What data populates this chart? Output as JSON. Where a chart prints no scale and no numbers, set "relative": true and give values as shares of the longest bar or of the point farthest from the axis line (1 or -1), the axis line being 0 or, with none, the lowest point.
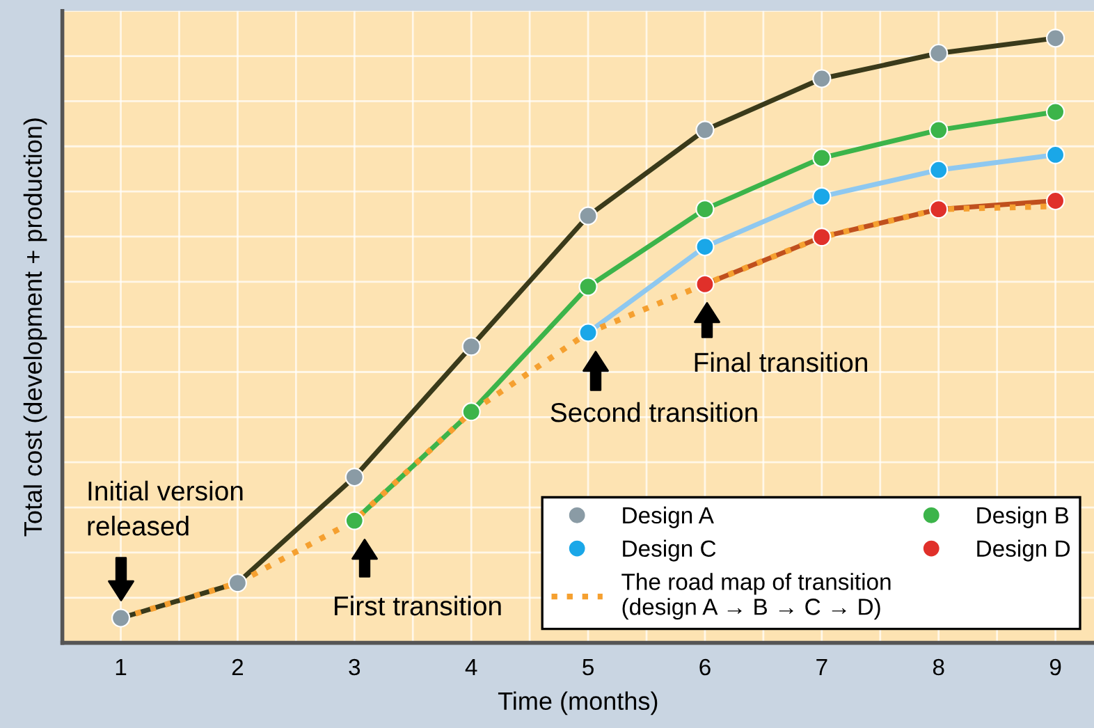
{
  "chart_data": {
    "type": "line",
    "relative": true,
    "xlabel": "Time (months)",
    "ylabel": "Total cost (development + production)",
    "xlim": [
      0.5,
      9.33
    ],
    "xticks": [
      1,
      2,
      3,
      4,
      5,
      6,
      7,
      8,
      9
    ],
    "tick_labels": "x",
    "grid": true,
    "legend": "bottom right",
    "marker": "circle",
    "series": [
      {
        "name": "Design A",
        "color": "#3a3a1a",
        "colors": [
          "#8a9ba5",
          "#8a9ba5",
          "#8a9ba5",
          "#8a9ba5",
          "#8a9ba5",
          "#8a9ba5",
          "#8a9ba5",
          "#8a9ba5",
          "#8a9ba5"
        ],
        "x": [
          1,
          2,
          3,
          4,
          5,
          6,
          7,
          8,
          9
        ],
        "values": [
          0.041,
          0.099,
          0.274,
          0.49,
          0.706,
          0.848,
          0.933,
          0.975,
          1
        ]
      },
      {
        "name": "Design B",
        "color": "#3cb44a",
        "colors": [
          "#3cb44a",
          "#3cb44a",
          "#3cb44a",
          "#3cb44a",
          "#3cb44a",
          "#3cb44a",
          "#3cb44a"
        ],
        "x": [
          3,
          4,
          5,
          6,
          7,
          8,
          9
        ],
        "values": [
          0.202,
          0.382,
          0.589,
          0.717,
          0.802,
          0.848,
          0.878
        ]
      },
      {
        "name": "Design C",
        "color": "#8ec8f0",
        "colors": [
          "#1aa7e8",
          "#1aa7e8",
          "#1aa7e8",
          "#1aa7e8",
          "#1aa7e8"
        ],
        "x": [
          5,
          6,
          7,
          8,
          9
        ],
        "values": [
          0.513,
          0.655,
          0.738,
          0.782,
          0.807
        ]
      },
      {
        "name": "Design D",
        "color": "#c0501e",
        "colors": [
          "#e0302a",
          "#e0302a",
          "#e0302a",
          "#e0302a"
        ],
        "x": [
          6,
          7,
          8,
          9
        ],
        "values": [
          0.593,
          0.671,
          0.717,
          0.731
        ]
      },
      {
        "name": "The road map of transition\n(design A → B → C → D)",
        "color": "#f5a030",
        "marker": "none",
        "line_style": "dotted",
        "x": [
          1,
          2,
          3,
          4,
          5,
          6,
          7,
          8,
          9
        ],
        "values": [
          0.041,
          0.099,
          0.202,
          0.382,
          0.513,
          0.593,
          0.671,
          0.717,
          0.722
        ]
      }
    ],
    "annotations": [
      "Initial version\nreleased",
      "First transition",
      "Second transition",
      "Final transition"
    ]
  }
}
